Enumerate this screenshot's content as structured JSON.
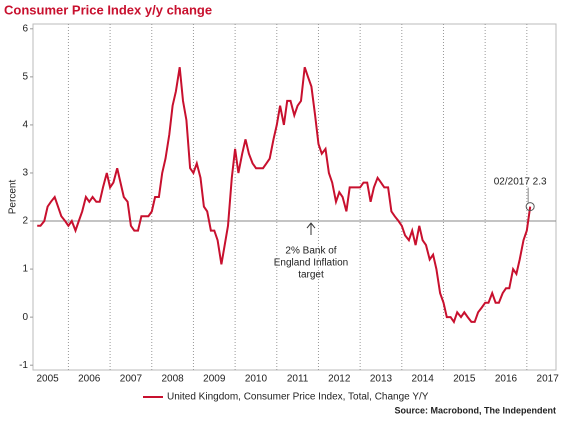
{
  "chart_data": {
    "type": "line",
    "title": "Consumer Price Index y/y change",
    "y_label": "Percent",
    "source": "Source: Macrobond, The Independent",
    "x": [
      2005.25,
      2005.33,
      2005.42,
      2005.5,
      2005.58,
      2005.67,
      2005.75,
      2005.83,
      2005.92,
      2006,
      2006.08,
      2006.17,
      2006.25,
      2006.33,
      2006.42,
      2006.5,
      2006.58,
      2006.67,
      2006.75,
      2006.83,
      2006.92,
      2007,
      2007.08,
      2007.17,
      2007.25,
      2007.33,
      2007.42,
      2007.5,
      2007.58,
      2007.67,
      2007.75,
      2007.83,
      2007.92,
      2008,
      2008.08,
      2008.17,
      2008.25,
      2008.33,
      2008.42,
      2008.5,
      2008.58,
      2008.67,
      2008.75,
      2008.83,
      2008.92,
      2009,
      2009.08,
      2009.17,
      2009.25,
      2009.33,
      2009.42,
      2009.5,
      2009.58,
      2009.67,
      2009.75,
      2009.83,
      2009.92,
      2010,
      2010.08,
      2010.17,
      2010.25,
      2010.33,
      2010.42,
      2010.5,
      2010.58,
      2010.67,
      2010.75,
      2010.83,
      2010.92,
      2011,
      2011.08,
      2011.17,
      2011.25,
      2011.33,
      2011.42,
      2011.5,
      2011.58,
      2011.67,
      2011.75,
      2011.83,
      2011.92,
      2012,
      2012.08,
      2012.17,
      2012.25,
      2012.33,
      2012.42,
      2012.5,
      2012.58,
      2012.67,
      2012.75,
      2012.83,
      2012.92,
      2013,
      2013.08,
      2013.17,
      2013.25,
      2013.33,
      2013.42,
      2013.5,
      2013.58,
      2013.67,
      2013.75,
      2013.83,
      2013.92,
      2014,
      2014.08,
      2014.17,
      2014.25,
      2014.33,
      2014.42,
      2014.5,
      2014.58,
      2014.67,
      2014.75,
      2014.83,
      2014.92,
      2015,
      2015.08,
      2015.17,
      2015.25,
      2015.33,
      2015.42,
      2015.5,
      2015.58,
      2015.67,
      2015.75,
      2015.83,
      2015.92,
      2016,
      2016.08,
      2016.17,
      2016.25,
      2016.33,
      2016.42,
      2016.5,
      2016.58,
      2016.67,
      2016.75,
      2016.83,
      2016.92,
      2017,
      2017.08
    ],
    "series": [
      {
        "name": "United Kingdom, Consumer Price Index, Total, Change Y/Y",
        "color": "#c8102e",
        "values": [
          1.9,
          1.9,
          2.0,
          2.3,
          2.4,
          2.5,
          2.3,
          2.1,
          2.0,
          1.9,
          2.0,
          1.8,
          2.0,
          2.2,
          2.5,
          2.4,
          2.5,
          2.4,
          2.4,
          2.7,
          3.0,
          2.7,
          2.8,
          3.1,
          2.8,
          2.5,
          2.4,
          1.9,
          1.8,
          1.8,
          2.1,
          2.1,
          2.1,
          2.2,
          2.5,
          2.5,
          3.0,
          3.3,
          3.8,
          4.4,
          4.7,
          5.2,
          4.5,
          4.1,
          3.1,
          3.0,
          3.2,
          2.9,
          2.3,
          2.2,
          1.8,
          1.8,
          1.6,
          1.1,
          1.5,
          1.9,
          2.9,
          3.5,
          3.0,
          3.4,
          3.7,
          3.4,
          3.2,
          3.1,
          3.1,
          3.1,
          3.2,
          3.3,
          3.7,
          4.0,
          4.4,
          4.0,
          4.5,
          4.5,
          4.2,
          4.4,
          4.5,
          5.2,
          5.0,
          4.8,
          4.2,
          3.6,
          3.4,
          3.5,
          3.0,
          2.8,
          2.4,
          2.6,
          2.5,
          2.2,
          2.7,
          2.7,
          2.7,
          2.7,
          2.8,
          2.8,
          2.4,
          2.7,
          2.9,
          2.8,
          2.7,
          2.7,
          2.2,
          2.1,
          2.0,
          1.9,
          1.7,
          1.6,
          1.8,
          1.5,
          1.9,
          1.6,
          1.5,
          1.2,
          1.3,
          1.0,
          0.5,
          0.3,
          0.0,
          0.0,
          -0.1,
          0.1,
          0.0,
          0.1,
          0.0,
          -0.1,
          -0.1,
          0.1,
          0.2,
          0.3,
          0.3,
          0.5,
          0.3,
          0.3,
          0.5,
          0.6,
          0.6,
          1.0,
          0.9,
          1.2,
          1.6,
          1.8,
          2.3
        ]
      }
    ],
    "xlim": [
      2005.15,
      2017.7
    ],
    "xticks": [
      {
        "value": 2005.5,
        "label": "2005"
      },
      {
        "value": 2006.5,
        "label": "2006"
      },
      {
        "value": 2007.5,
        "label": "2007"
      },
      {
        "value": 2008.5,
        "label": "2008"
      },
      {
        "value": 2009.5,
        "label": "2009"
      },
      {
        "value": 2010.5,
        "label": "2010"
      },
      {
        "value": 2011.5,
        "label": "2011"
      },
      {
        "value": 2012.5,
        "label": "2012"
      },
      {
        "value": 2013.5,
        "label": "2013"
      },
      {
        "value": 2014.5,
        "label": "2014"
      },
      {
        "value": 2015.5,
        "label": "2015"
      },
      {
        "value": 2016.5,
        "label": "2016"
      },
      {
        "value": 2017.5,
        "label": "2017"
      }
    ],
    "ylim": [
      -1.1,
      6.1
    ],
    "yticks": [
      -1,
      0,
      1,
      2,
      3,
      4,
      5,
      6
    ],
    "reference_line": {
      "value": 2,
      "label": [
        "2% Bank of",
        "England Inflation",
        "target"
      ]
    },
    "annotation": "02/2017 2.3",
    "grid": true,
    "legend": "bottom"
  }
}
